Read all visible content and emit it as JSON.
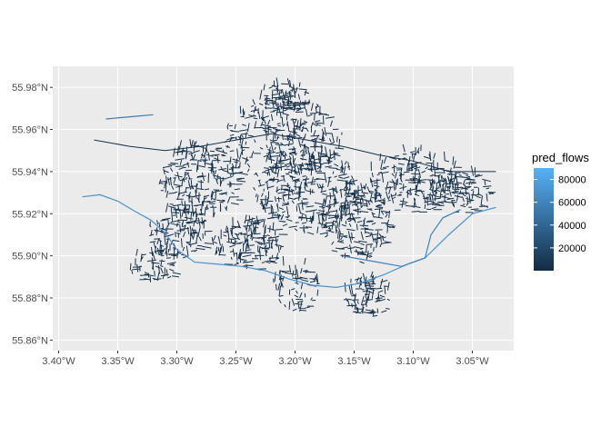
{
  "chart_data": {
    "type": "map",
    "title": "",
    "xlabel": "",
    "ylabel": "",
    "x_range": [
      -3.405,
      -3.015
    ],
    "y_range": [
      55.855,
      55.99
    ],
    "x_ticks": [
      {
        "value": -3.4,
        "label": "3.40°W"
      },
      {
        "value": -3.35,
        "label": "3.35°W"
      },
      {
        "value": -3.3,
        "label": "3.30°W"
      },
      {
        "value": -3.25,
        "label": "3.25°W"
      },
      {
        "value": -3.2,
        "label": "3.20°W"
      },
      {
        "value": -3.15,
        "label": "3.15°W"
      },
      {
        "value": -3.1,
        "label": "3.10°W"
      },
      {
        "value": -3.05,
        "label": "3.05°W"
      }
    ],
    "y_ticks": [
      {
        "value": 55.86,
        "label": "55.86°N"
      },
      {
        "value": 55.88,
        "label": "55.88°N"
      },
      {
        "value": 55.9,
        "label": "55.90°N"
      },
      {
        "value": 55.92,
        "label": "55.92°N"
      },
      {
        "value": 55.94,
        "label": "55.94°N"
      },
      {
        "value": 55.96,
        "label": "55.96°N"
      },
      {
        "value": 55.98,
        "label": "55.98°N"
      }
    ],
    "legend": {
      "title": "pred_flows",
      "placement": "right",
      "min": 0,
      "max": 90000,
      "breaks": [
        20000,
        40000,
        60000,
        80000
      ],
      "labels": [
        "20000",
        "40000",
        "60000",
        "80000"
      ],
      "color_low": "#132B43",
      "color_high": "#56B1F7"
    },
    "high_flow_routes": [
      {
        "name": "",
        "flow": 70000,
        "points": [
          [
            -3.38,
            55.928
          ],
          [
            -3.365,
            55.929
          ],
          [
            -3.35,
            55.926
          ],
          [
            -3.335,
            55.921
          ],
          [
            -3.322,
            55.917
          ],
          [
            -3.31,
            55.911
          ],
          [
            -3.3,
            55.903
          ],
          [
            -3.285,
            55.897
          ],
          [
            -3.265,
            55.896
          ],
          [
            -3.245,
            55.895
          ],
          [
            -3.225,
            55.893
          ],
          [
            -3.205,
            55.889
          ],
          [
            -3.185,
            55.886
          ],
          [
            -3.165,
            55.885
          ],
          [
            -3.145,
            55.887
          ],
          [
            -3.125,
            55.891
          ],
          [
            -3.105,
            55.896
          ],
          [
            -3.09,
            55.899
          ],
          [
            -3.07,
            55.91
          ],
          [
            -3.05,
            55.92
          ],
          [
            -3.03,
            55.923
          ]
        ]
      },
      {
        "name": "",
        "flow": 60000,
        "points": [
          [
            -3.16,
            55.9
          ],
          [
            -3.13,
            55.897
          ],
          [
            -3.11,
            55.895
          ],
          [
            -3.09,
            55.899
          ],
          [
            -3.085,
            55.91
          ],
          [
            -3.075,
            55.918
          ],
          [
            -3.06,
            55.922
          ]
        ]
      },
      {
        "name": "",
        "flow": 55000,
        "points": [
          [
            -3.36,
            55.965
          ],
          [
            -3.34,
            55.966
          ],
          [
            -3.32,
            55.967
          ]
        ]
      }
    ],
    "network": {
      "flow_level": 4000,
      "spine_x": [
        [
          -3.37,
          55.955
        ],
        [
          -3.34,
          55.952
        ],
        [
          -3.31,
          55.95
        ],
        [
          -3.28,
          55.952
        ],
        [
          -3.25,
          55.955
        ],
        [
          -3.22,
          55.958
        ],
        [
          -3.19,
          55.955
        ],
        [
          -3.16,
          55.952
        ],
        [
          -3.13,
          55.948
        ],
        [
          -3.1,
          55.945
        ],
        [
          -3.07,
          55.94
        ],
        [
          -3.03,
          55.94
        ]
      ]
    }
  }
}
